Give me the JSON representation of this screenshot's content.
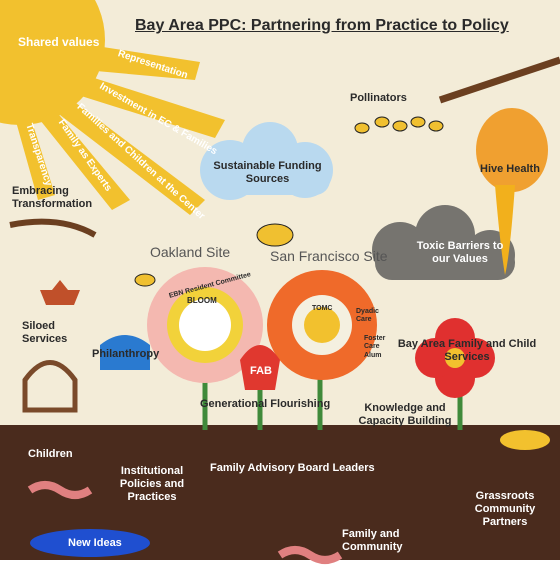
{
  "poster": {
    "title": "Bay Area PPC: Partnering from Practice to Policy",
    "sun": {
      "label": "Shared values",
      "rays": [
        "Representation",
        "Investment in EC & Families",
        "Families and Children at the Center",
        "Family as Experts",
        "Transparency"
      ]
    },
    "sky": {
      "transformation": "Embracing Transformation",
      "pollinators": "Pollinators",
      "funding": "Sustainable Funding Sources",
      "hive": "Hive Health",
      "oakland": "Oakland Site",
      "san_francisco": "San Francisco Site",
      "toxic": "Toxic Barriers to our Values"
    },
    "garden": {
      "siloed": "Siloed Services",
      "philanthropy": "Philanthropy",
      "ebn": "EBN Resident Committee",
      "bloom": "BLOOM",
      "tomc": "TOMC",
      "dyadic": "Dyadic Care",
      "foster": "Foster Care Alum",
      "fab": "FAB",
      "bafcs": "Bay Area Family and Child Services",
      "flourishing": "Generational Flourishing",
      "knowledge": "Knowledge and Capacity Building"
    },
    "soil": {
      "children": "Children",
      "institutional": "Institutional Policies and Practices",
      "fab_leaders": "Family Advisory Board Leaders",
      "grassroots": "Grassroots Community Partners",
      "new_ideas": "New Ideas",
      "family_community": "Family and Community"
    }
  }
}
